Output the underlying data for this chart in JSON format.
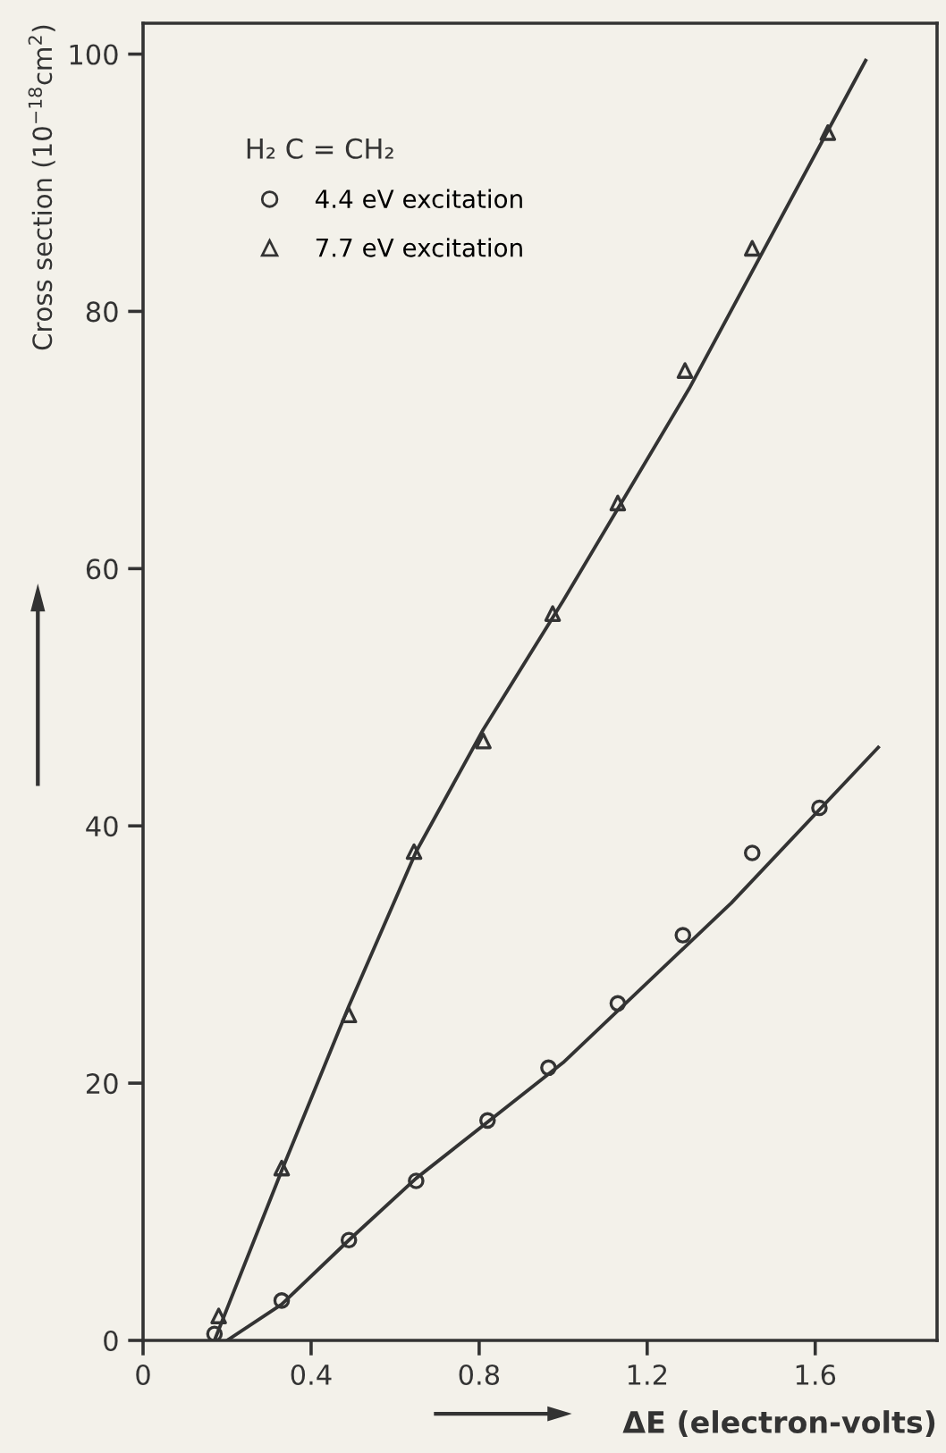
{
  "chart_data": {
    "type": "scatter",
    "xlabel": "ΔE (electron-volts)",
    "ylabel": "Cross section (10$^{−18}$cm$^{2}$)",
    "legend_title": "H₂ C = CH₂",
    "legend": "top left",
    "grid": false,
    "xlim": [
      0,
      1.89
    ],
    "xticks": [
      0,
      0.4,
      0.8,
      1.2,
      1.6
    ],
    "ylim": [
      0,
      102.4
    ],
    "yticks": [
      0,
      20,
      40,
      60,
      80,
      100
    ],
    "series": [
      {
        "name": "4.4 eV excitation",
        "marker": "circle",
        "color": "#333333",
        "x": [
          0.17,
          0.33,
          0.49,
          0.65,
          0.82,
          0.965,
          1.13,
          1.285,
          1.45,
          1.61
        ],
        "values": [
          0.5,
          3.1,
          7.8,
          12.4,
          17.1,
          21.2,
          26.2,
          31.5,
          37.9,
          41.4
        ]
      },
      {
        "name": "7.7 eV excitation",
        "marker": "triangle",
        "color": "#333333",
        "x": [
          0.18,
          0.33,
          0.49,
          0.645,
          0.81,
          0.975,
          1.13,
          1.29,
          1.45,
          1.63
        ],
        "values": [
          1.9,
          13.4,
          25.3,
          38,
          46.6,
          56.5,
          65.1,
          75.4,
          84.9,
          93.9
        ]
      },
      {
        "type": "line",
        "color": "#333333",
        "line_style": "solid",
        "x": [
          0.2,
          0.33,
          0.49,
          0.65,
          1.0,
          1.4,
          1.75
        ],
        "values": [
          0,
          2.8,
          7.8,
          12.6,
          21.6,
          34,
          46.1
        ]
      },
      {
        "type": "line",
        "color": "#333333",
        "line_style": "solid",
        "x": [
          0.17,
          0.33,
          0.49,
          0.65,
          0.81,
          1.0,
          1.3,
          1.72
        ],
        "values": [
          0,
          13.2,
          26,
          38,
          47.5,
          57.5,
          74,
          99.5
        ]
      }
    ]
  }
}
